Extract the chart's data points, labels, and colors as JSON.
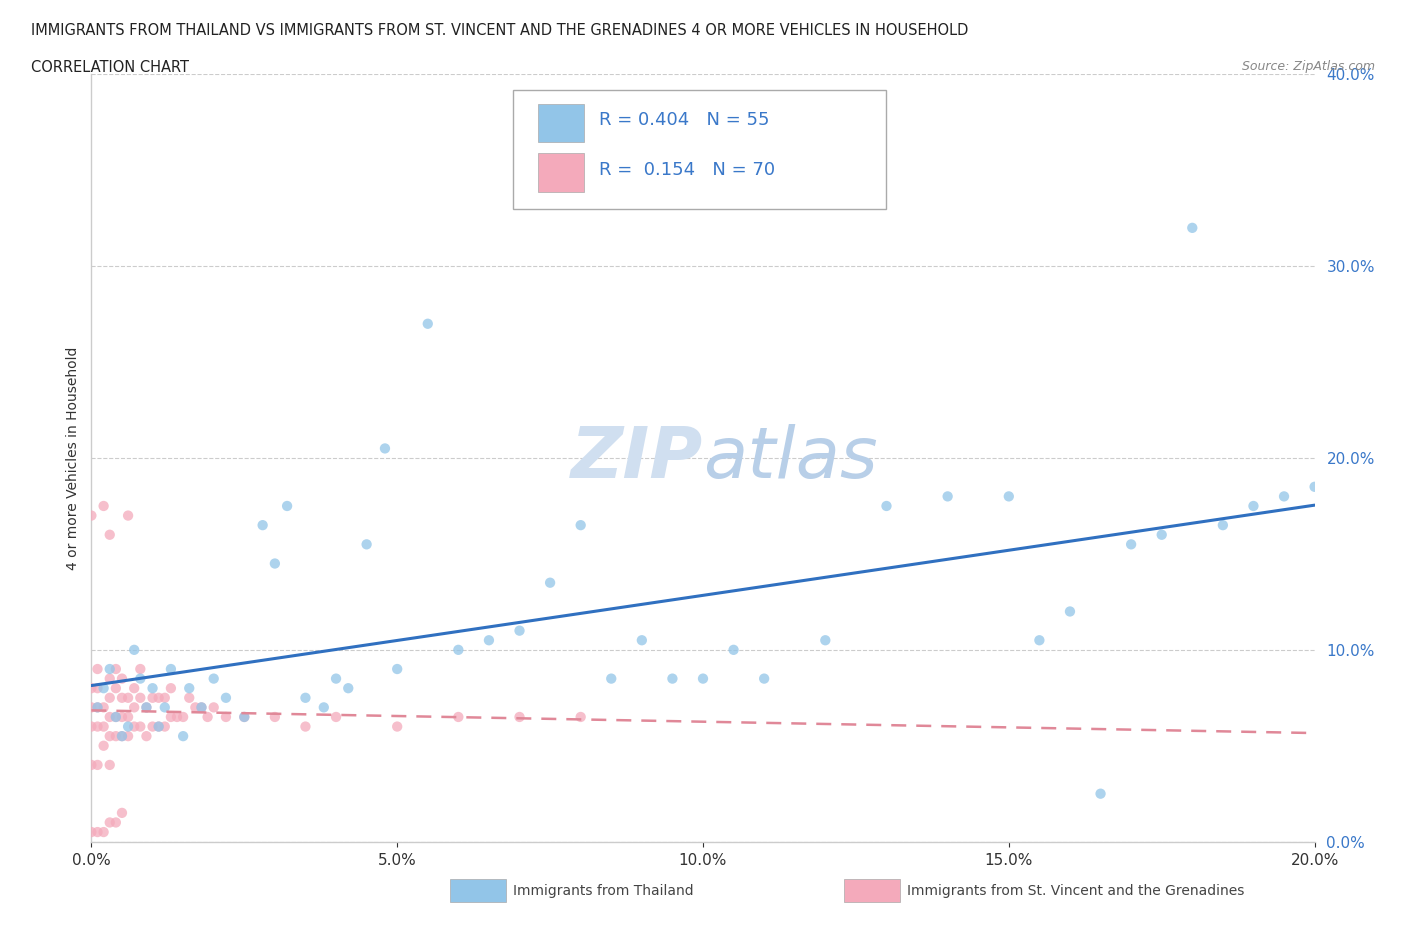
{
  "title_line1": "IMMIGRANTS FROM THAILAND VS IMMIGRANTS FROM ST. VINCENT AND THE GRENADINES 4 OR MORE VEHICLES IN HOUSEHOLD",
  "title_line2": "CORRELATION CHART",
  "source_text": "Source: ZipAtlas.com",
  "ylabel": "4 or more Vehicles in Household",
  "xlim": [
    0.0,
    0.2
  ],
  "ylim": [
    0.0,
    0.4
  ],
  "color_thailand": "#92C5E8",
  "color_svg": "#F4AABB",
  "color_trend_thailand": "#3070C0",
  "color_trend_svg": "#E08898",
  "watermark_color": "#d0dff0",
  "R_thailand": 0.404,
  "N_thailand": 55,
  "R_svg": 0.154,
  "N_svg": 70,
  "thailand_x": [
    0.001,
    0.002,
    0.003,
    0.004,
    0.005,
    0.006,
    0.007,
    0.008,
    0.009,
    0.01,
    0.011,
    0.012,
    0.013,
    0.015,
    0.016,
    0.018,
    0.02,
    0.022,
    0.025,
    0.028,
    0.03,
    0.032,
    0.035,
    0.038,
    0.04,
    0.042,
    0.045,
    0.048,
    0.05,
    0.055,
    0.06,
    0.065,
    0.07,
    0.075,
    0.08,
    0.085,
    0.09,
    0.095,
    0.1,
    0.105,
    0.11,
    0.12,
    0.13,
    0.14,
    0.15,
    0.155,
    0.16,
    0.165,
    0.17,
    0.175,
    0.18,
    0.185,
    0.19,
    0.195,
    0.2
  ],
  "thailand_y": [
    0.07,
    0.08,
    0.09,
    0.065,
    0.055,
    0.06,
    0.1,
    0.085,
    0.07,
    0.08,
    0.06,
    0.07,
    0.09,
    0.055,
    0.08,
    0.07,
    0.085,
    0.075,
    0.065,
    0.165,
    0.145,
    0.175,
    0.075,
    0.07,
    0.085,
    0.08,
    0.155,
    0.205,
    0.09,
    0.27,
    0.1,
    0.105,
    0.11,
    0.135,
    0.165,
    0.085,
    0.105,
    0.085,
    0.085,
    0.1,
    0.085,
    0.105,
    0.175,
    0.18,
    0.18,
    0.105,
    0.12,
    0.025,
    0.155,
    0.16,
    0.32,
    0.165,
    0.175,
    0.18,
    0.185
  ],
  "svg_x": [
    0.0,
    0.0,
    0.0,
    0.0,
    0.0,
    0.001,
    0.001,
    0.001,
    0.001,
    0.001,
    0.002,
    0.002,
    0.002,
    0.002,
    0.003,
    0.003,
    0.003,
    0.003,
    0.003,
    0.003,
    0.004,
    0.004,
    0.004,
    0.004,
    0.005,
    0.005,
    0.005,
    0.005,
    0.006,
    0.006,
    0.006,
    0.006,
    0.007,
    0.007,
    0.007,
    0.008,
    0.008,
    0.008,
    0.009,
    0.009,
    0.01,
    0.01,
    0.011,
    0.011,
    0.012,
    0.012,
    0.013,
    0.013,
    0.014,
    0.015,
    0.016,
    0.017,
    0.018,
    0.019,
    0.02,
    0.022,
    0.025,
    0.03,
    0.035,
    0.04,
    0.05,
    0.06,
    0.07,
    0.08,
    0.0,
    0.001,
    0.002,
    0.003,
    0.004,
    0.005
  ],
  "svg_y": [
    0.04,
    0.06,
    0.07,
    0.08,
    0.17,
    0.04,
    0.06,
    0.07,
    0.08,
    0.09,
    0.05,
    0.06,
    0.07,
    0.175,
    0.04,
    0.055,
    0.065,
    0.075,
    0.085,
    0.16,
    0.055,
    0.065,
    0.08,
    0.09,
    0.055,
    0.065,
    0.075,
    0.085,
    0.055,
    0.065,
    0.075,
    0.17,
    0.06,
    0.07,
    0.08,
    0.06,
    0.075,
    0.09,
    0.055,
    0.07,
    0.06,
    0.075,
    0.06,
    0.075,
    0.06,
    0.075,
    0.065,
    0.08,
    0.065,
    0.065,
    0.075,
    0.07,
    0.07,
    0.065,
    0.07,
    0.065,
    0.065,
    0.065,
    0.06,
    0.065,
    0.06,
    0.065,
    0.065,
    0.065,
    0.005,
    0.005,
    0.005,
    0.01,
    0.01,
    0.015
  ]
}
